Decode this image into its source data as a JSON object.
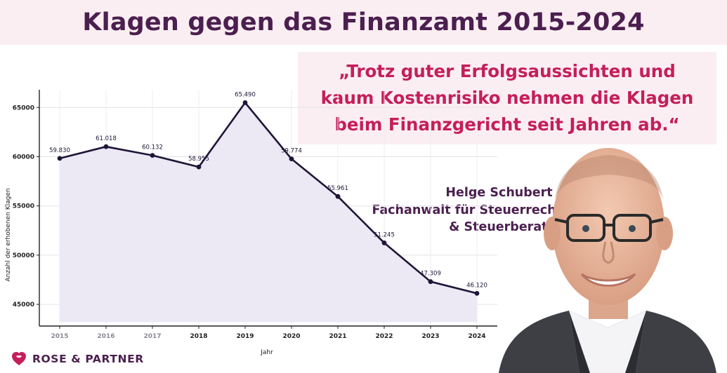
{
  "header": {
    "title": "Klagen gegen das Finanzamt 2015-2024"
  },
  "quote": {
    "lines": [
      "„Trotz guter Erfolgsaussichten und",
      "kaum Kostenrisiko nehmen die Klagen",
      "beim Finanzgericht seit Jahren ab.“"
    ]
  },
  "speaker": {
    "lines": [
      "Helge Schubert -",
      "Fachanwalt für Steuerrecht",
      "& Steuerberater"
    ]
  },
  "logo": {
    "text": "ROSE & PARTNER",
    "icon": "rose-logo-icon"
  },
  "colors": {
    "title": "#4b1f4f",
    "quote": "#c51e5b",
    "band": "#fbeef2",
    "line": "#1f1536",
    "area": "#ece8f4"
  },
  "chart_data": {
    "type": "area",
    "x": [
      "2015",
      "2016",
      "2017",
      "2018",
      "2019",
      "2020",
      "2021",
      "2022",
      "2023",
      "2024"
    ],
    "series": [
      {
        "values": [
          59830,
          61018,
          60132,
          58955,
          65490,
          59774,
          55961,
          51245,
          47309,
          46120
        ]
      }
    ],
    "data_labels": [
      "59.830",
      "61.018",
      "60.132",
      "58.955",
      "65.490",
      "59.774",
      "55.961",
      "51.245",
      "47.309",
      "46.120"
    ],
    "xlabel": "Jahr",
    "ylabel": "Anzahl der erhobenen Klagen",
    "yticks": [
      45000,
      50000,
      55000,
      60000,
      65000
    ],
    "ytick_labels": [
      "45000",
      "50000",
      "55000",
      "60000",
      "65000"
    ],
    "ylim": [
      42800,
      66800
    ],
    "area_baseline": 43200,
    "grid": true,
    "legend": "none"
  }
}
